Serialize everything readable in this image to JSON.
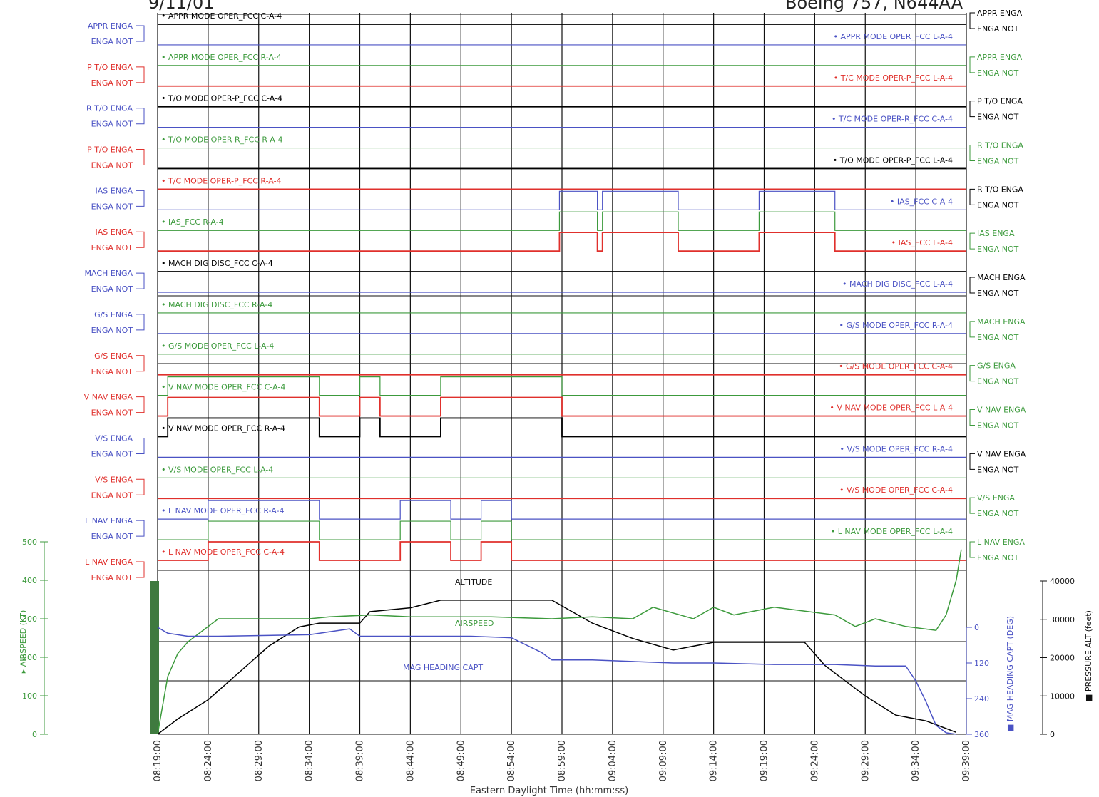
{
  "header": {
    "date": "9/11/01",
    "aircraft": "Boeing 757, N644AA"
  },
  "colors": {
    "black": "#000000",
    "red": "#e0302c",
    "green": "#3c9a3c",
    "blue": "#4a52c4",
    "grid": "#111111"
  },
  "chart_data": {
    "type": "line",
    "x_axis": {
      "label": "Eastern Daylight Time (hh:mm:ss)",
      "ticks": [
        "08:19:00",
        "08:24:00",
        "08:29:00",
        "08:34:00",
        "08:39:00",
        "08:44:00",
        "08:49:00",
        "08:54:00",
        "08:59:00",
        "09:04:00",
        "09:09:00",
        "09:14:00",
        "09:19:00",
        "09:24:00",
        "09:29:00",
        "09:34:00",
        "09:39:00"
      ]
    },
    "left_state_labels": [
      {
        "top": "APPR ENGA",
        "bottom": "ENGA NOT",
        "color": "blue"
      },
      {
        "top": "P T/O ENGA",
        "bottom": "ENGA NOT",
        "color": "red"
      },
      {
        "top": "R T/O ENGA",
        "bottom": "ENGA NOT",
        "color": "blue"
      },
      {
        "top": "P T/O ENGA",
        "bottom": "ENGA NOT",
        "color": "red"
      },
      {
        "top": "IAS ENGA",
        "bottom": "ENGA NOT",
        "color": "blue"
      },
      {
        "top": "IAS ENGA",
        "bottom": "ENGA NOT",
        "color": "red"
      },
      {
        "top": "MACH ENGA",
        "bottom": "ENGA NOT",
        "color": "blue"
      },
      {
        "top": "G/S ENGA",
        "bottom": "ENGA NOT",
        "color": "blue"
      },
      {
        "top": "G/S ENGA",
        "bottom": "ENGA NOT",
        "color": "red"
      },
      {
        "top": "V NAV ENGA",
        "bottom": "ENGA NOT",
        "color": "red"
      },
      {
        "top": "V/S ENGA",
        "bottom": "ENGA NOT",
        "color": "blue"
      },
      {
        "top": "V/S ENGA",
        "bottom": "ENGA NOT",
        "color": "red"
      },
      {
        "top": "L NAV ENGA",
        "bottom": "ENGA NOT",
        "color": "blue"
      },
      {
        "top": "L NAV ENGA",
        "bottom": "ENGA NOT",
        "color": "red"
      }
    ],
    "right_state_labels": [
      {
        "top": "APPR ENGA",
        "bottom": "ENGA NOT",
        "color": "black"
      },
      {
        "top": "APPR ENGA",
        "bottom": "ENGA NOT",
        "color": "green"
      },
      {
        "top": "P T/O ENGA",
        "bottom": "ENGA NOT",
        "color": "black"
      },
      {
        "top": "R T/O ENGA",
        "bottom": "ENGA NOT",
        "color": "green"
      },
      {
        "top": "R T/O ENGA",
        "bottom": "ENGA NOT",
        "color": "black"
      },
      {
        "top": "IAS ENGA",
        "bottom": "ENGA NOT",
        "color": "green"
      },
      {
        "top": "MACH ENGA",
        "bottom": "ENGA NOT",
        "color": "black"
      },
      {
        "top": "MACH ENGA",
        "bottom": "ENGA NOT",
        "color": "green"
      },
      {
        "top": "G/S ENGA",
        "bottom": "ENGA NOT",
        "color": "green"
      },
      {
        "top": "V NAV ENGA",
        "bottom": "ENGA NOT",
        "color": "green"
      },
      {
        "top": "V NAV ENGA",
        "bottom": "ENGA NOT",
        "color": "black"
      },
      {
        "top": "V/S ENGA",
        "bottom": "ENGA NOT",
        "color": "green"
      },
      {
        "top": "L NAV ENGA",
        "bottom": "ENGA NOT",
        "color": "green"
      }
    ],
    "discrete_traces": [
      {
        "name": "APPR MODE OPER_FCC C-A-4",
        "color": "black",
        "state": "not_engaged",
        "transitions": []
      },
      {
        "name": "APPR MODE OPER_FCC L-A-4",
        "color": "blue",
        "state": "not_engaged",
        "transitions": []
      },
      {
        "name": "APPR MODE OPER_FCC R-A-4",
        "color": "green",
        "state": "not_engaged",
        "transitions": []
      },
      {
        "name": "T/C MODE OPER-P_FCC L-A-4",
        "color": "red",
        "state": "not_engaged",
        "transitions": []
      },
      {
        "name": "T/O MODE OPER-P_FCC C-A-4",
        "color": "black",
        "state": "not_engaged",
        "transitions": []
      },
      {
        "name": "T/C MODE OPER-R_FCC C-A-4",
        "color": "blue",
        "state": "not_engaged",
        "transitions": []
      },
      {
        "name": "T/O MODE OPER-R_FCC R-A-4",
        "color": "green",
        "state": "not_engaged",
        "transitions": []
      },
      {
        "name": "T/O MODE OPER-P_FCC L-A-4",
        "color": "black",
        "state": "not_engaged",
        "transitions": []
      },
      {
        "name": "T/C MODE OPER-P_FCC R-A-4",
        "color": "red",
        "state": "not_engaged",
        "transitions": []
      },
      {
        "name": "IAS_FCC C-A-4",
        "color": "blue",
        "engaged_intervals": [
          [
            "08:58:45",
            "09:02:30"
          ],
          [
            "09:03:00",
            "09:10:30"
          ],
          [
            "09:18:30",
            "09:26:00"
          ]
        ]
      },
      {
        "name": "IAS_FCC R-A-4",
        "color": "green",
        "engaged_intervals": [
          [
            "08:58:45",
            "09:02:30"
          ],
          [
            "09:03:00",
            "09:10:30"
          ],
          [
            "09:18:30",
            "09:26:00"
          ]
        ]
      },
      {
        "name": "IAS_FCC L-A-4",
        "color": "red",
        "engaged_intervals": [
          [
            "08:58:45",
            "09:02:30"
          ],
          [
            "09:03:00",
            "09:10:30"
          ],
          [
            "09:18:30",
            "09:26:00"
          ]
        ]
      },
      {
        "name": "MACH DIG DISC_FCC C-A-4",
        "color": "black",
        "state": "not_engaged",
        "transitions": []
      },
      {
        "name": "MACH DIG DISC_FCC L-A-4",
        "color": "blue",
        "state": "not_engaged",
        "transitions": []
      },
      {
        "name": "MACH DIG DISC_FCC R-A-4",
        "color": "green",
        "state": "not_engaged",
        "transitions": []
      },
      {
        "name": "G/S MODE OPER_FCC R-A-4",
        "color": "blue",
        "state": "not_engaged",
        "transitions": []
      },
      {
        "name": "G/S MODE OPER_FCC L-A-4",
        "color": "green",
        "state": "not_engaged",
        "transitions": []
      },
      {
        "name": "G/S MODE OPER_FCC C-A-4",
        "color": "red",
        "state": "not_engaged",
        "transitions": []
      },
      {
        "name": "V NAV MODE OPER_FCC C-A-4",
        "color": "green",
        "engaged_intervals": [
          [
            "08:20:00",
            "08:35:00"
          ],
          [
            "08:39:00",
            "08:41:00"
          ],
          [
            "08:47:00",
            "08:59:00"
          ]
        ]
      },
      {
        "name": "V NAV MODE OPER_FCC L-A-4",
        "color": "red",
        "engaged_intervals": [
          [
            "08:20:00",
            "08:35:00"
          ],
          [
            "08:39:00",
            "08:41:00"
          ],
          [
            "08:47:00",
            "08:59:00"
          ]
        ]
      },
      {
        "name": "V NAV MODE OPER_FCC R-A-4",
        "color": "black",
        "engaged_intervals": [
          [
            "08:20:00",
            "08:35:00"
          ],
          [
            "08:39:00",
            "08:41:00"
          ],
          [
            "08:47:00",
            "08:59:00"
          ]
        ]
      },
      {
        "name": "V/S MODE OPER_FCC R-A-4",
        "color": "blue",
        "state": "not_engaged",
        "transitions": []
      },
      {
        "name": "V/S MODE OPER_FCC L-A-4",
        "color": "green",
        "state": "not_engaged",
        "transitions": []
      },
      {
        "name": "V/S MODE OPER_FCC C-A-4",
        "color": "red",
        "state": "not_engaged",
        "transitions": []
      },
      {
        "name": "L NAV MODE OPER_FCC R-A-4",
        "color": "blue",
        "engaged_intervals": [
          [
            "08:24:00",
            "08:35:00"
          ],
          [
            "08:43:00",
            "08:48:00"
          ],
          [
            "08:51:00",
            "08:54:00"
          ]
        ]
      },
      {
        "name": "L NAV MODE OPER_FCC L-A-4",
        "color": "green",
        "engaged_intervals": [
          [
            "08:24:00",
            "08:35:00"
          ],
          [
            "08:43:00",
            "08:48:00"
          ],
          [
            "08:51:00",
            "08:54:00"
          ]
        ]
      },
      {
        "name": "L NAV MODE OPER_FCC C-A-4",
        "color": "red",
        "engaged_intervals": [
          [
            "08:24:00",
            "08:35:00"
          ],
          [
            "08:43:00",
            "08:48:00"
          ],
          [
            "08:51:00",
            "08:54:00"
          ]
        ]
      }
    ],
    "analog_panel": {
      "airspeed_axis": {
        "label": "AIRSPEED (KT)",
        "ticks": [
          0,
          100,
          200,
          300,
          400,
          500
        ]
      },
      "altitude_axis": {
        "label": "PRESSURE ALT (feet)",
        "ticks": [
          0,
          10000,
          20000,
          30000,
          40000
        ]
      },
      "heading_axis": {
        "label": "MAG HEADING CAPT (DEG)",
        "ticks": [
          0,
          120,
          240,
          360
        ]
      },
      "series": [
        {
          "name": "ALTITUDE",
          "color": "black",
          "axis": "altitude",
          "x": [
            "08:19:00",
            "08:21:00",
            "08:24:00",
            "08:27:00",
            "08:30:00",
            "08:33:00",
            "08:35:00",
            "08:39:00",
            "08:40:00",
            "08:44:00",
            "08:47:00",
            "08:55:00",
            "08:58:00",
            "09:02:00",
            "09:06:00",
            "09:10:00",
            "09:12:00",
            "09:14:00",
            "09:16:00",
            "09:23:00",
            "09:25:00",
            "09:29:00",
            "09:32:00",
            "09:35:00",
            "09:37:00",
            "09:38:00"
          ],
          "y": [
            0,
            4000,
            9000,
            16000,
            23000,
            28000,
            29000,
            29000,
            32000,
            33000,
            35000,
            35000,
            35000,
            29000,
            25000,
            22000,
            23000,
            24000,
            24000,
            24000,
            18000,
            10000,
            5000,
            3500,
            1500,
            500
          ]
        },
        {
          "name": "AIRSPEED",
          "color": "green",
          "axis": "airspeed",
          "x": [
            "08:19:00",
            "08:20:00",
            "08:21:00",
            "08:22:00",
            "08:23:00",
            "08:25:00",
            "08:27:00",
            "08:34:00",
            "08:36:00",
            "08:40:00",
            "08:44:00",
            "08:52:00",
            "08:58:00",
            "09:02:00",
            "09:06:00",
            "09:08:00",
            "09:12:00",
            "09:14:00",
            "09:16:00",
            "09:20:00",
            "09:26:00",
            "09:28:00",
            "09:30:00",
            "09:33:00",
            "09:36:00",
            "09:37:00",
            "09:38:00",
            "09:38:30"
          ],
          "y": [
            0,
            150,
            210,
            240,
            260,
            300,
            300,
            300,
            305,
            310,
            305,
            305,
            300,
            305,
            300,
            330,
            300,
            330,
            310,
            330,
            310,
            280,
            300,
            280,
            270,
            310,
            400,
            480
          ]
        },
        {
          "name": "MAG HEADING CAPT",
          "color": "blue",
          "axis": "heading",
          "x": [
            "08:19:00",
            "08:20:00",
            "08:22:00",
            "08:25:00",
            "08:34:00",
            "08:36:00",
            "08:38:00",
            "08:39:00",
            "08:42:00",
            "08:50:00",
            "08:54:00",
            "08:57:00",
            "08:58:00",
            "09:02:00",
            "09:06:00",
            "09:10:00",
            "09:14:00",
            "09:20:00",
            "09:26:00",
            "09:30:00",
            "09:33:00",
            "09:34:00",
            "09:35:00",
            "09:36:00",
            "09:37:00",
            "09:38:00"
          ],
          "y": [
            0,
            20,
            30,
            30,
            25,
            15,
            5,
            30,
            30,
            30,
            35,
            85,
            110,
            110,
            115,
            120,
            120,
            125,
            125,
            130,
            130,
            180,
            250,
            330,
            355,
            360
          ]
        }
      ]
    }
  }
}
